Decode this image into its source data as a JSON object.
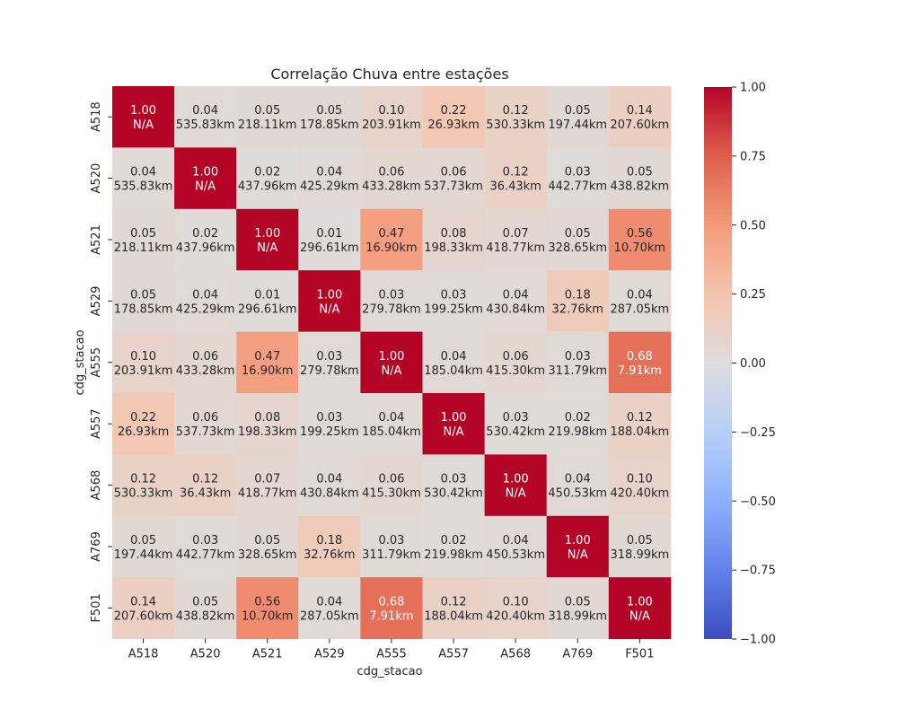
{
  "chart_data": {
    "type": "heatmap",
    "title": "Correlação Chuva entre estações",
    "xlabel": "cdg_stacao",
    "ylabel": "cdg_stacao",
    "categories": [
      "A518",
      "A520",
      "A521",
      "A529",
      "A555",
      "A557",
      "A568",
      "A769",
      "F501"
    ],
    "values": [
      [
        1.0,
        0.04,
        0.05,
        0.05,
        0.1,
        0.22,
        0.12,
        0.05,
        0.14
      ],
      [
        0.04,
        1.0,
        0.02,
        0.04,
        0.06,
        0.06,
        0.12,
        0.03,
        0.05
      ],
      [
        0.05,
        0.02,
        1.0,
        0.01,
        0.47,
        0.08,
        0.07,
        0.05,
        0.56
      ],
      [
        0.05,
        0.04,
        0.01,
        1.0,
        0.03,
        0.03,
        0.04,
        0.18,
        0.04
      ],
      [
        0.1,
        0.06,
        0.47,
        0.03,
        1.0,
        0.04,
        0.06,
        0.03,
        0.68
      ],
      [
        0.22,
        0.06,
        0.08,
        0.03,
        0.04,
        1.0,
        0.03,
        0.02,
        0.12
      ],
      [
        0.12,
        0.12,
        0.07,
        0.04,
        0.06,
        0.03,
        1.0,
        0.04,
        0.1
      ],
      [
        0.05,
        0.03,
        0.05,
        0.18,
        0.03,
        0.02,
        0.04,
        1.0,
        0.05
      ],
      [
        0.14,
        0.05,
        0.56,
        0.04,
        0.68,
        0.12,
        0.1,
        0.05,
        1.0
      ]
    ],
    "cell_labels": [
      [
        "1.00\nN/A",
        "0.04\n535.83km",
        "0.05\n218.11km",
        "0.05\n178.85km",
        "0.10\n203.91km",
        "0.22\n26.93km",
        "0.12\n530.33km",
        "0.05\n197.44km",
        "0.14\n207.60km"
      ],
      [
        "0.04\n535.83km",
        "1.00\nN/A",
        "0.02\n437.96km",
        "0.04\n425.29km",
        "0.06\n433.28km",
        "0.06\n537.73km",
        "0.12\n36.43km",
        "0.03\n442.77km",
        "0.05\n438.82km"
      ],
      [
        "0.05\n218.11km",
        "0.02\n437.96km",
        "1.00\nN/A",
        "0.01\n296.61km",
        "0.47\n16.90km",
        "0.08\n198.33km",
        "0.07\n418.77km",
        "0.05\n328.65km",
        "0.56\n10.70km"
      ],
      [
        "0.05\n178.85km",
        "0.04\n425.29km",
        "0.01\n296.61km",
        "1.00\nN/A",
        "0.03\n279.78km",
        "0.03\n199.25km",
        "0.04\n430.84km",
        "0.18\n32.76km",
        "0.04\n287.05km"
      ],
      [
        "0.10\n203.91km",
        "0.06\n433.28km",
        "0.47\n16.90km",
        "0.03\n279.78km",
        "1.00\nN/A",
        "0.04\n185.04km",
        "0.06\n415.30km",
        "0.03\n311.79km",
        "0.68\n7.91km"
      ],
      [
        "0.22\n26.93km",
        "0.06\n537.73km",
        "0.08\n198.33km",
        "0.03\n199.25km",
        "0.04\n185.04km",
        "1.00\nN/A",
        "0.03\n530.42km",
        "0.02\n219.98km",
        "0.12\n188.04km"
      ],
      [
        "0.12\n530.33km",
        "0.12\n36.43km",
        "0.07\n418.77km",
        "0.04\n430.84km",
        "0.06\n415.30km",
        "0.03\n530.42km",
        "1.00\nN/A",
        "0.04\n450.53km",
        "0.10\n420.40km"
      ],
      [
        "0.05\n197.44km",
        "0.03\n442.77km",
        "0.05\n328.65km",
        "0.18\n32.76km",
        "0.03\n311.79km",
        "0.02\n219.98km",
        "0.04\n450.53km",
        "1.00\nN/A",
        "0.05\n318.99km"
      ],
      [
        "0.14\n207.60km",
        "0.05\n438.82km",
        "0.56\n10.70km",
        "0.04\n287.05km",
        "0.68\n7.91km",
        "0.12\n188.04km",
        "0.10\n420.40km",
        "0.05\n318.99km",
        "1.00\nN/A"
      ]
    ],
    "colormap": "coolwarm",
    "vmin": -1.0,
    "vmax": 1.0,
    "colorbar_ticks": [
      1.0,
      0.75,
      0.5,
      0.25,
      0.0,
      -0.25,
      -0.5,
      -0.75,
      -1.0
    ],
    "colorbar_tick_labels": [
      "1.00",
      "0.75",
      "0.50",
      "0.25",
      "0.00",
      "−0.25",
      "−0.50",
      "−0.75",
      "−1.00"
    ],
    "grid": false,
    "legend": "colorbar-right"
  }
}
